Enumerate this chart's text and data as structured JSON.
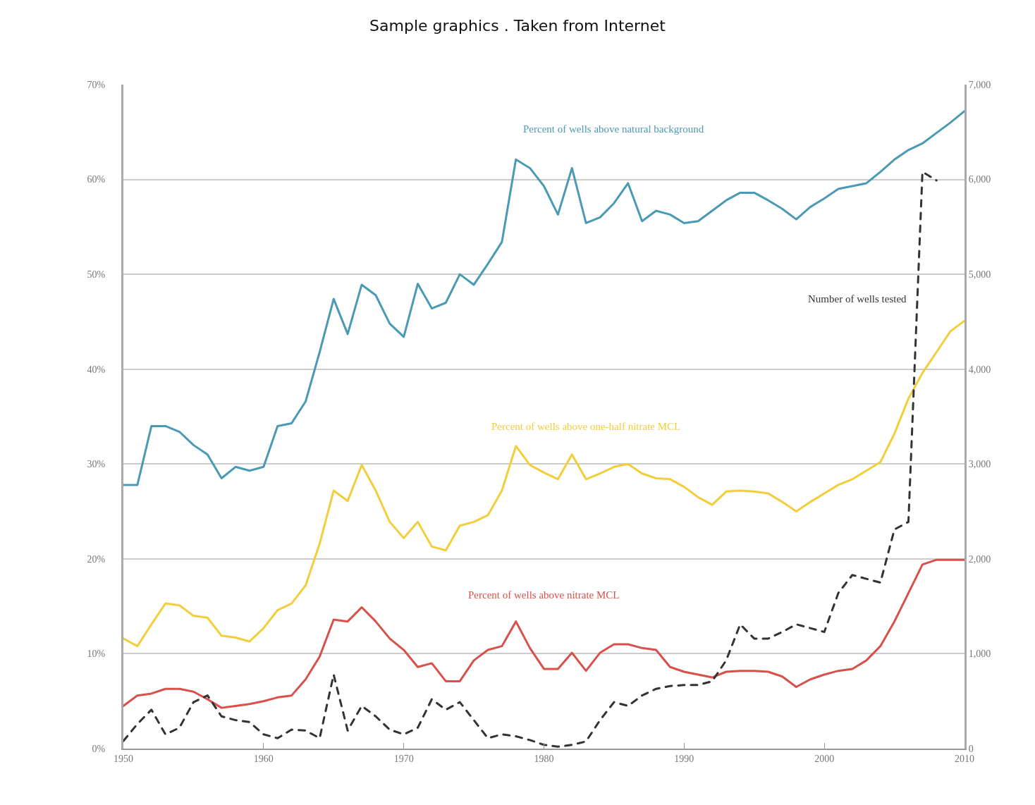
{
  "chart_data": {
    "type": "line",
    "title": "Sample graphics . Taken from Internet",
    "x": [
      1950,
      1951,
      1952,
      1953,
      1954,
      1955,
      1956,
      1957,
      1958,
      1959,
      1960,
      1961,
      1962,
      1963,
      1964,
      1965,
      1966,
      1967,
      1968,
      1969,
      1970,
      1971,
      1972,
      1973,
      1974,
      1975,
      1976,
      1977,
      1978,
      1979,
      1980,
      1981,
      1982,
      1983,
      1984,
      1985,
      1986,
      1987,
      1988,
      1989,
      1990,
      1991,
      1992,
      1993,
      1994,
      1995,
      1996,
      1997,
      1998,
      1999,
      2000,
      2001,
      2002,
      2003,
      2004,
      2005,
      2006,
      2007,
      2008,
      2009,
      2010
    ],
    "series": [
      {
        "name": "Percent of wells above natural background",
        "color": "#4a9ab5",
        "values": [
          27.8,
          27.8,
          34,
          34,
          33.4,
          32,
          31,
          28.5,
          29.7,
          29.3,
          29.7,
          34,
          34.3,
          36.6,
          41.8,
          47.4,
          43.7,
          48.9,
          47.8,
          44.8,
          43.4,
          49,
          46.4,
          47,
          50,
          48.9,
          51.1,
          53.4,
          62.1,
          61.2,
          59.3,
          56.3,
          61.2,
          55.4,
          56,
          57.5,
          59.6,
          55.6,
          56.7,
          56.3,
          55.4,
          55.6,
          56.7,
          57.8,
          58.6,
          58.6,
          57.8,
          56.9,
          55.8,
          57.1,
          58,
          59,
          59.3,
          59.6,
          60.8,
          62.1,
          63.1,
          63.8,
          64.9,
          66,
          67.2
        ]
      },
      {
        "name": "Percent of wells above one-half nitrate MCL",
        "color": "#f2cd3c",
        "values": [
          11.6,
          10.8,
          13.1,
          15.3,
          15.1,
          14,
          13.8,
          11.9,
          11.7,
          11.3,
          12.7,
          14.6,
          15.3,
          17.2,
          21.6,
          27.2,
          26.1,
          29.9,
          27.2,
          23.9,
          22.2,
          23.9,
          21.3,
          20.9,
          23.5,
          23.9,
          24.6,
          27.2,
          31.9,
          29.9,
          29.1,
          28.4,
          31,
          28.4,
          29,
          29.7,
          30,
          29,
          28.5,
          28.4,
          27.6,
          26.5,
          25.7,
          27.1,
          27.2,
          27.1,
          26.9,
          26,
          25,
          26,
          26.9,
          27.8,
          28.4,
          29.3,
          30.2,
          33.2,
          36.9,
          39.6,
          41.8,
          44,
          45.1
        ]
      },
      {
        "name": "Percent of wells above nitrate MCL",
        "color": "#d9504a",
        "values": [
          4.5,
          5.6,
          5.8,
          6.3,
          6.3,
          6,
          5.2,
          4.3,
          4.5,
          4.7,
          5,
          5.4,
          5.6,
          7.3,
          9.7,
          13.6,
          13.4,
          14.9,
          13.4,
          11.6,
          10.4,
          8.6,
          9,
          7.1,
          7.1,
          9.3,
          10.4,
          10.8,
          13.4,
          10.6,
          8.4,
          8.4,
          10.1,
          8.2,
          10.1,
          11,
          11,
          10.6,
          10.4,
          8.6,
          8.1,
          7.8,
          7.5,
          8.1,
          8.2,
          8.2,
          8.1,
          7.6,
          6.5,
          7.3,
          7.8,
          8.2,
          8.4,
          9.3,
          10.8,
          13.4,
          16.4,
          19.4,
          19.9,
          19.9,
          19.9
        ]
      },
      {
        "name": "Number of wells tested",
        "color": "#333333",
        "axis": "y2",
        "line_style": "dashed",
        "x": [
          1950,
          1951,
          1952,
          1953,
          1954,
          1955,
          1956,
          1957,
          1958,
          1959,
          1960,
          1961,
          1962,
          1963,
          1964,
          1965,
          1966,
          1967,
          1968,
          1969,
          1970,
          1971,
          1972,
          1973,
          1974,
          1975,
          1976,
          1977,
          1978,
          1979,
          1980,
          1981,
          1982,
          1983,
          1984,
          1985,
          1986,
          1987,
          1988,
          1989,
          1990,
          1991,
          1992,
          1993,
          1994,
          1995,
          1996,
          1997,
          1998,
          1999,
          2000,
          2001,
          2002,
          2003,
          2004,
          2005,
          2006,
          2007,
          2008
        ],
        "values": [
          80,
          260,
          410,
          150,
          220,
          490,
          560,
          340,
          300,
          280,
          150,
          110,
          200,
          190,
          110,
          780,
          190,
          450,
          340,
          200,
          150,
          220,
          520,
          410,
          490,
          300,
          110,
          150,
          130,
          90,
          40,
          20,
          40,
          75,
          300,
          490,
          450,
          560,
          630,
          660,
          670,
          670,
          710,
          930,
          1310,
          1160,
          1160,
          1230,
          1310,
          1270,
          1230,
          1640,
          1830,
          1790,
          1750,
          2310,
          2390,
          6080,
          5990
        ]
      }
    ],
    "xlim": [
      1950,
      2010
    ],
    "xticks": [
      1950,
      1960,
      1970,
      1980,
      1990,
      2000,
      2010
    ],
    "ylim": [
      0,
      70
    ],
    "yticks": [
      {
        "value": 0,
        "label": "0%"
      },
      {
        "value": 10,
        "label": "10%"
      },
      {
        "value": 20,
        "label": "20%"
      },
      {
        "value": 30,
        "label": "30%"
      },
      {
        "value": 40,
        "label": "40%"
      },
      {
        "value": 50,
        "label": "50%"
      },
      {
        "value": 60,
        "label": "60%"
      },
      {
        "value": 70,
        "label": "70%"
      }
    ],
    "y2lim": [
      0,
      7000
    ],
    "y2ticks": [
      0,
      {
        "value": 1000,
        "label": "1,000"
      },
      {
        "value": 2000,
        "label": "2,000"
      },
      {
        "value": 3000,
        "label": "3,000"
      },
      {
        "value": 4000,
        "label": "4,000"
      },
      {
        "value": 5000,
        "label": "5,000"
      },
      {
        "value": 6000,
        "label": "6,000"
      },
      {
        "value": 7000,
        "label": "7,000"
      }
    ],
    "grid": "y",
    "marker": "none",
    "line_style": "solid"
  }
}
